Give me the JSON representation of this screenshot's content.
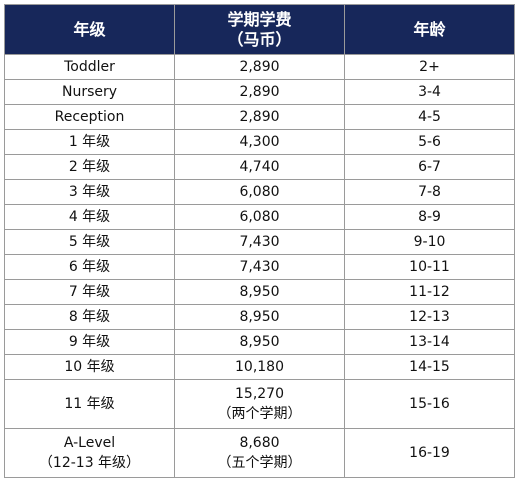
{
  "header": {
    "grade": "年级",
    "fee_line1": "学期学费",
    "fee_line2": "（马币）",
    "age": "年龄"
  },
  "rows": [
    {
      "grade": "Toddler",
      "fee": "2,890",
      "age": "2+"
    },
    {
      "grade": "Nursery",
      "fee": "2,890",
      "age": "3-4"
    },
    {
      "grade": "Reception",
      "fee": "2,890",
      "age": "4-5"
    },
    {
      "grade": "1 年级",
      "fee": "4,300",
      "age": "5-6"
    },
    {
      "grade": "2 年级",
      "fee": "4,740",
      "age": "6-7"
    },
    {
      "grade": "3 年级",
      "fee": "6,080",
      "age": "7-8"
    },
    {
      "grade": "4 年级",
      "fee": "6,080",
      "age": "8-9"
    },
    {
      "grade": "5 年级",
      "fee": "7,430",
      "age": "9-10"
    },
    {
      "grade": "6 年级",
      "fee": "7,430",
      "age": "10-11"
    },
    {
      "grade": "7 年级",
      "fee": "8,950",
      "age": "11-12"
    },
    {
      "grade": "8 年级",
      "fee": "8,950",
      "age": "12-13"
    },
    {
      "grade": "9 年级",
      "fee": "8,950",
      "age": "13-14"
    },
    {
      "grade": "10 年级",
      "fee": "10,180",
      "age": "14-15"
    }
  ],
  "row_11": {
    "grade": "11 年级",
    "fee": "15,270",
    "fee_note": "（两个学期）",
    "age": "15-16"
  },
  "row_alevel": {
    "grade": "A-Level",
    "grade_note": "（12-13 年级）",
    "fee": "8,680",
    "fee_note": "（五个学期）",
    "age": "16-19"
  }
}
